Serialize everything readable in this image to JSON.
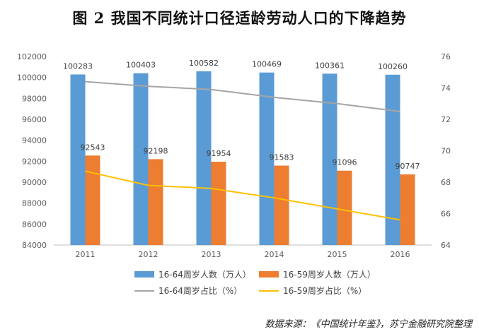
{
  "title": "图 2  我国不同统计口径适龄劳动人口的下降趋势",
  "source": "数据来源：《中国统计年鉴》，苏宁金融研究院整理",
  "chart_data": {
    "type": "bar+line",
    "categories": [
      "2011",
      "2012",
      "2013",
      "2014",
      "2015",
      "2016"
    ],
    "y_left": {
      "min": 84000,
      "max": 102000,
      "step": 2000
    },
    "y_right": {
      "min": 64,
      "max": 76,
      "step": 2
    },
    "grid": false,
    "legend_position": "bottom",
    "series": [
      {
        "name": "16-64周岁人数（万人）",
        "type": "bar",
        "axis": "left",
        "color": "#5b9bd5",
        "values": [
          100283,
          100403,
          100582,
          100469,
          100361,
          100260
        ]
      },
      {
        "name": "16-59周岁人数（万人）",
        "type": "bar",
        "axis": "left",
        "color": "#ed7d31",
        "values": [
          92543,
          92198,
          91954,
          91583,
          91096,
          90747
        ]
      },
      {
        "name": "16-64周岁占比（%）",
        "type": "line",
        "axis": "right",
        "color": "#a5a5a5",
        "values": [
          74.4,
          74.1,
          73.9,
          73.4,
          73.0,
          72.5
        ]
      },
      {
        "name": "16-59周岁占比（%）",
        "type": "line",
        "axis": "right",
        "color": "#ffc000",
        "values": [
          68.7,
          67.8,
          67.6,
          67.0,
          66.3,
          65.6
        ]
      }
    ]
  }
}
